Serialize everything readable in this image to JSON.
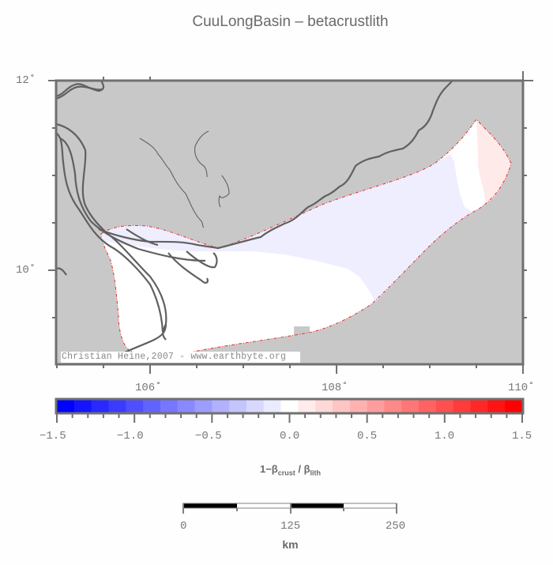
{
  "title": "CuuLongBasin – betacrustlith",
  "map": {
    "lon_range": [
      105,
      110
    ],
    "lat_range": [
      9.1,
      12
    ],
    "lat_ticks": [
      {
        "value": 12,
        "label": "12˚"
      },
      {
        "value": 10,
        "label": "10˚"
      }
    ],
    "lon_ticks": [
      {
        "value": 106,
        "label": "106˚"
      },
      {
        "value": 108,
        "label": "108˚"
      },
      {
        "value": 110,
        "label": "110˚"
      }
    ],
    "credit": "Christian Heine,2007 - www.earthbyte.org",
    "colors": {
      "land": "#c8c8c8",
      "frame": "#707070",
      "coast": "#606060",
      "outline": "#e83030",
      "basin_white": "#ffffff",
      "basin_lavender": "#eeeeff",
      "basin_pink": "#ffeaea"
    }
  },
  "colorbar": {
    "min": -1.5,
    "max": 1.5,
    "tick_labels": [
      "−1.5",
      "−1.0",
      "−0.5",
      "0.0",
      "0.5",
      "1.0",
      "1.5"
    ],
    "label_prefix": "1−β",
    "label_sub1": "crust",
    "label_mid": " / β",
    "label_sub2": "lith",
    "colors": [
      "#0000ff",
      "#1414ff",
      "#2828ff",
      "#3b3bff",
      "#4f4fff",
      "#6262ff",
      "#7676ff",
      "#8989ff",
      "#9d9dff",
      "#b1b1ff",
      "#c4c4ff",
      "#d8d8ff",
      "#ebebff",
      "#ffffff",
      "#ffebeb",
      "#ffd8d8",
      "#ffc4c4",
      "#ffb1b1",
      "#ff9d9d",
      "#ff8989",
      "#ff7676",
      "#ff6262",
      "#ff4f4f",
      "#ff3b3b",
      "#ff2828",
      "#ff1414",
      "#ff0000"
    ]
  },
  "scalebar": {
    "labels": [
      "0",
      "125",
      "250"
    ],
    "unit": "km"
  }
}
